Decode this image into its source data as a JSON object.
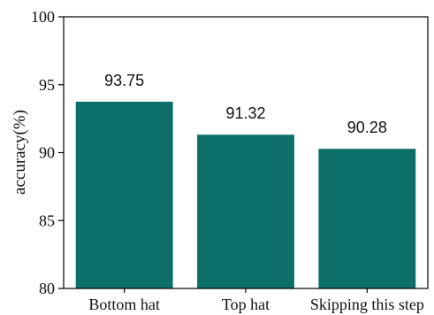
{
  "chart_data": {
    "type": "bar",
    "categories": [
      "Bottom hat",
      "Top hat",
      "Skipping this step"
    ],
    "values": [
      93.75,
      91.32,
      90.28
    ],
    "value_labels": [
      "93.75",
      "91.32",
      "90.28"
    ],
    "title": "",
    "xlabel": "",
    "ylabel": "accuracy(%)",
    "ylim": [
      80,
      100
    ],
    "yticks": [
      80,
      85,
      90,
      95,
      100
    ],
    "ytick_labels": [
      "80",
      "85",
      "90",
      "95",
      "100"
    ],
    "grid": false,
    "bar_color": "#0d7068"
  }
}
